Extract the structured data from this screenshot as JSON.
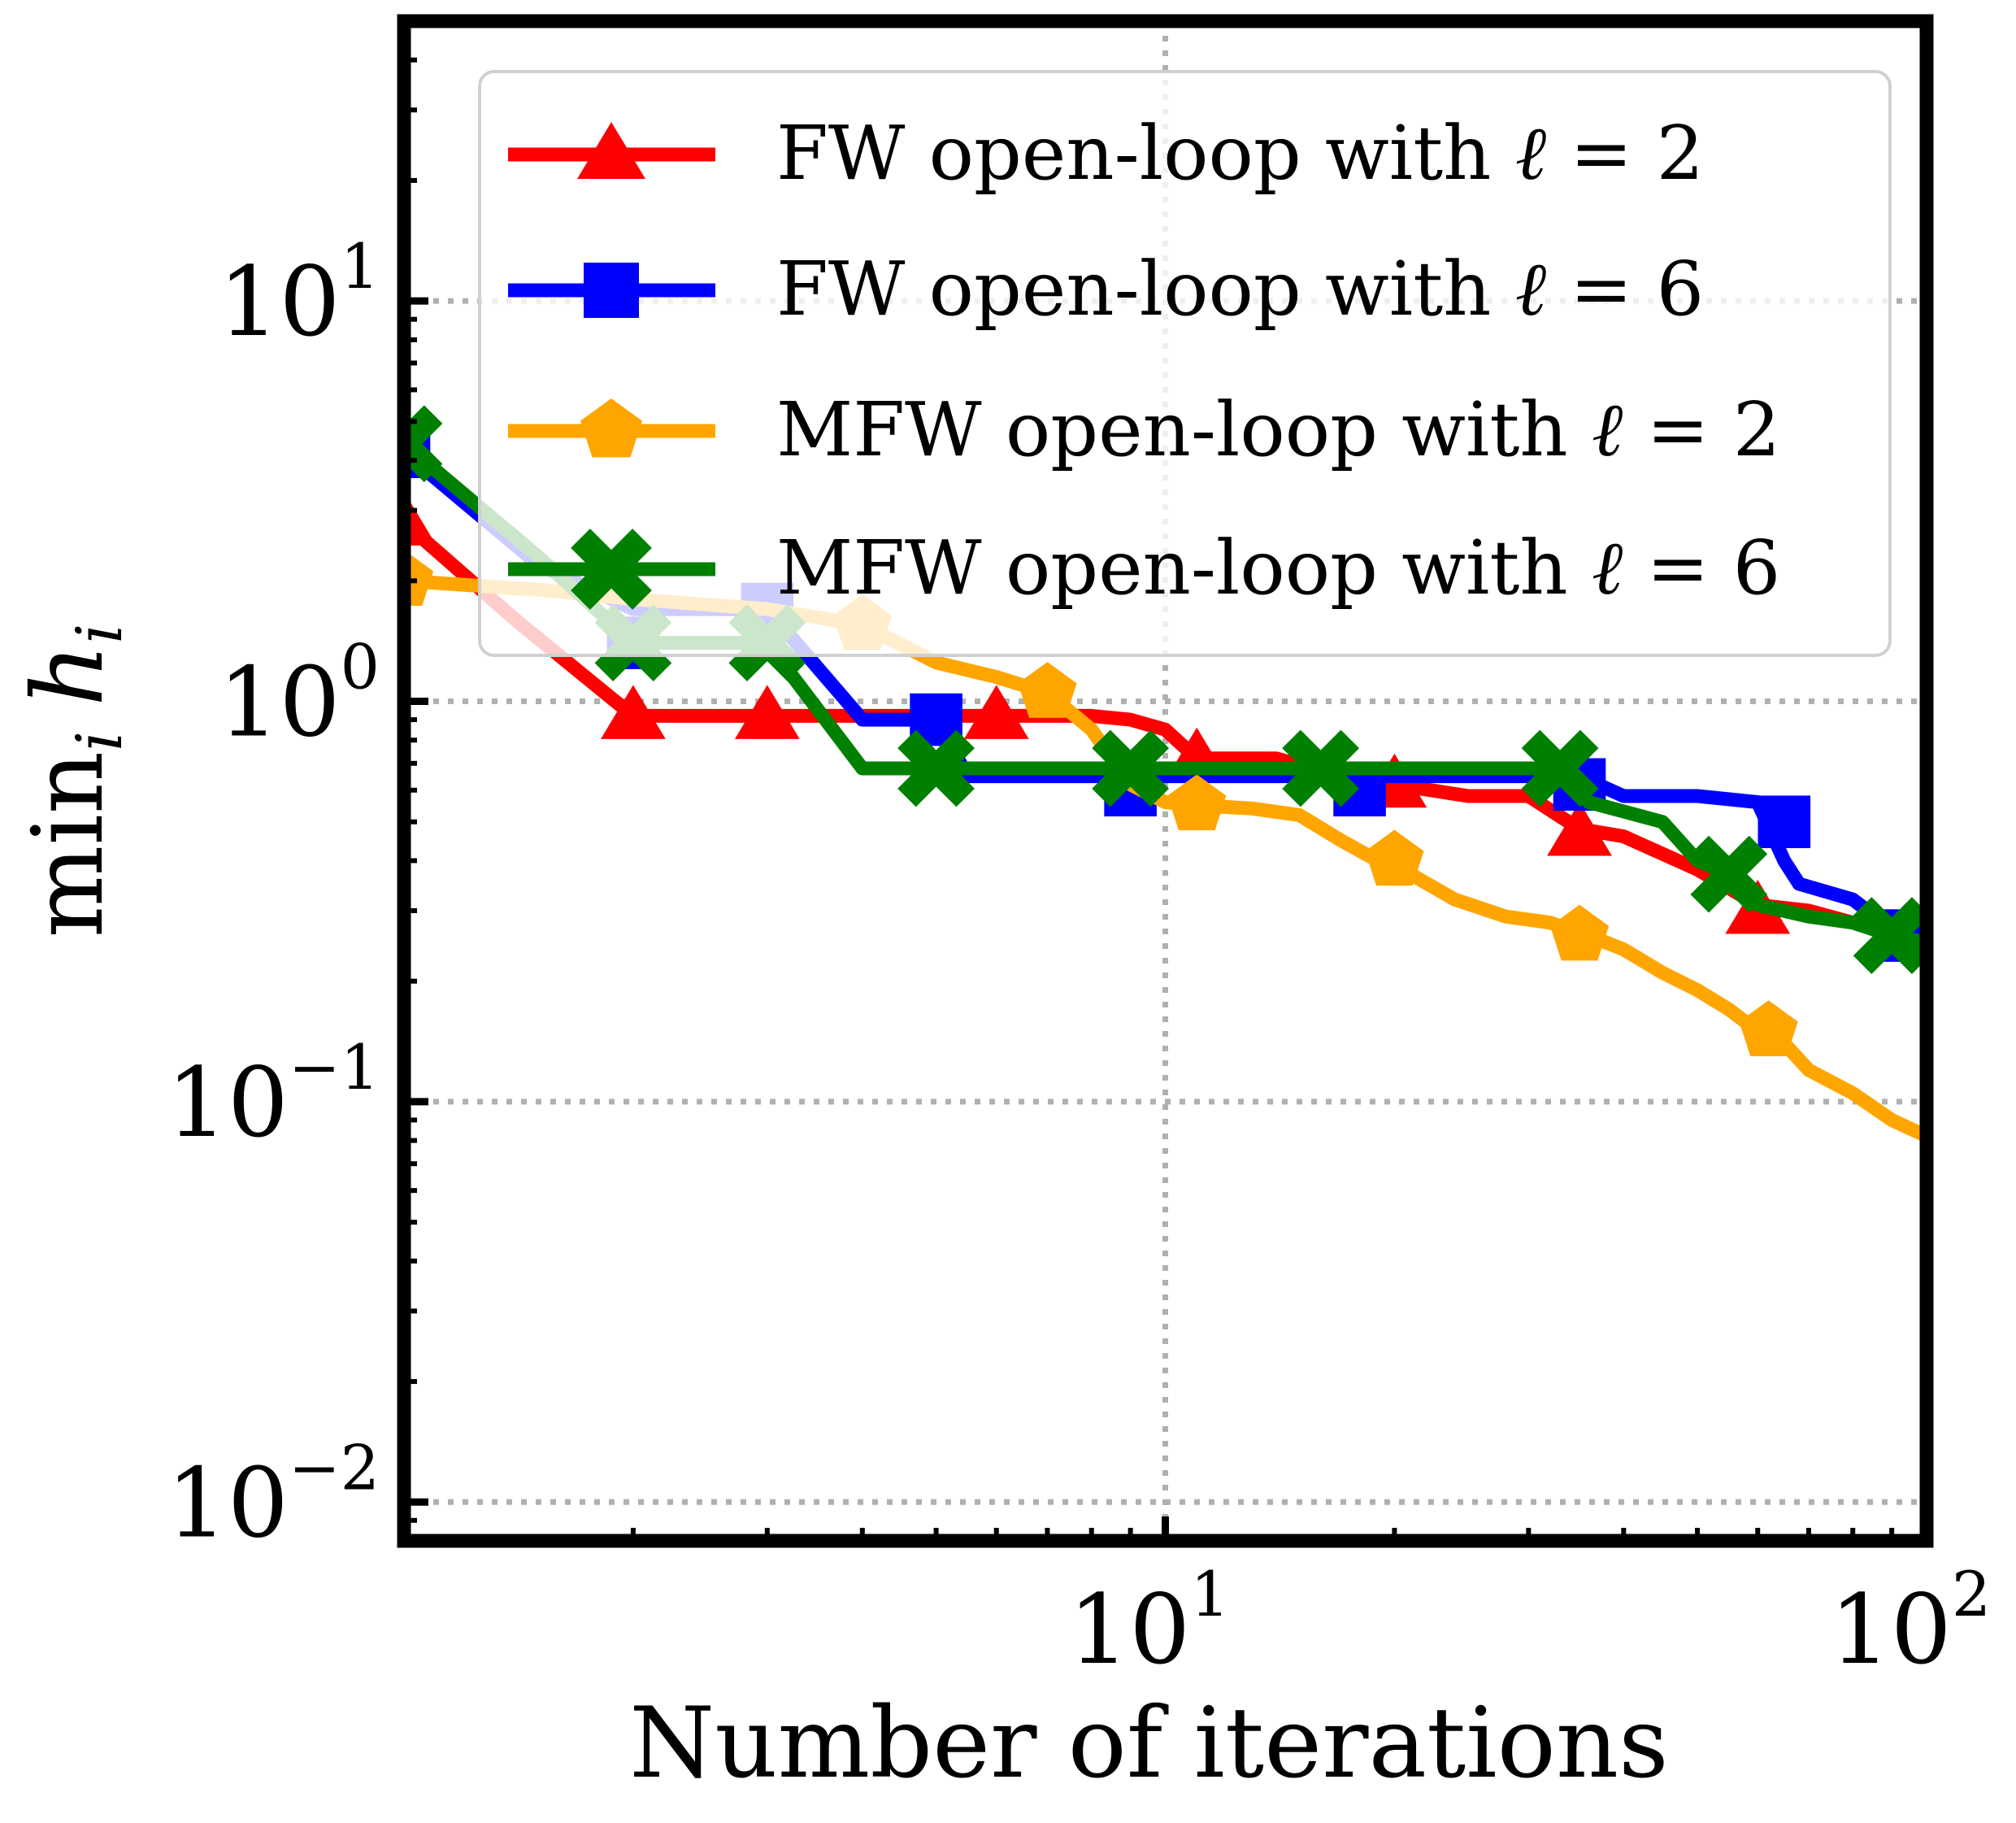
{
  "chart_data": {
    "type": "line",
    "xscale": "log",
    "yscale": "log",
    "xlim": [
      1,
      100
    ],
    "ylim": [
      0.008,
      50
    ],
    "xlabel": "Number of iterations",
    "ylabel": "min_i h_i",
    "ylabel_parts": {
      "op": "min",
      "sub": "i",
      "var": "h",
      "var_sub": "i"
    },
    "grid": true,
    "legend_position": "top-right",
    "xticks": [
      {
        "value": 10,
        "base": "10",
        "exp": "1"
      },
      {
        "value": 100,
        "base": "10",
        "exp": "2"
      }
    ],
    "yticks": [
      {
        "value": 10,
        "base": "10",
        "exp": "1"
      },
      {
        "value": 1,
        "base": "10",
        "exp": "0"
      },
      {
        "value": 0.1,
        "base": "10",
        "exp": "−1"
      },
      {
        "value": 0.01,
        "base": "10",
        "exp": "−2"
      }
    ],
    "series": [
      {
        "name": "FW open-loop with ℓ = 2",
        "name_parts": {
          "prefix": "FW open-loop with ",
          "ell": "ℓ",
          "eq": " = 2"
        },
        "color": "#ff0000",
        "marker": "triangle",
        "x": [
          1,
          1.4,
          2,
          2.2,
          3,
          3.5,
          4,
          5,
          6,
          7,
          8,
          9,
          10,
          11,
          12,
          14,
          16,
          18,
          20,
          25,
          30,
          35,
          40,
          50,
          60,
          70,
          80,
          90,
          100
        ],
        "y": [
          2.8,
          1.6,
          0.92,
          0.92,
          0.92,
          0.92,
          0.92,
          0.92,
          0.92,
          0.92,
          0.92,
          0.9,
          0.85,
          0.72,
          0.72,
          0.72,
          0.67,
          0.62,
          0.62,
          0.58,
          0.58,
          0.48,
          0.46,
          0.38,
          0.31,
          0.3,
          0.28,
          0.27,
          0.26
        ],
        "marker_x": [
          1,
          2,
          3,
          6,
          11,
          20,
          35,
          60
        ],
        "marker_y": [
          2.8,
          0.92,
          0.92,
          0.92,
          0.72,
          0.62,
          0.47,
          0.3
        ]
      },
      {
        "name": "FW open-loop with ℓ = 6",
        "name_parts": {
          "prefix": "FW open-loop with ",
          "ell": "ℓ",
          "eq": " = 6"
        },
        "color": "#0000ff",
        "marker": "square",
        "x": [
          1,
          1.5,
          2,
          3,
          4,
          4.5,
          5,
          5.5,
          6,
          7,
          9,
          12,
          18,
          20,
          25,
          35,
          40,
          50,
          60,
          65,
          68,
          80,
          90,
          100
        ],
        "y": [
          4.2,
          2.2,
          1.7,
          1.7,
          0.9,
          0.9,
          0.9,
          0.65,
          0.65,
          0.65,
          0.65,
          0.65,
          0.65,
          0.65,
          0.65,
          0.65,
          0.58,
          0.58,
          0.56,
          0.4,
          0.35,
          0.32,
          0.27,
          0.25
        ],
        "marker_x": [
          1,
          2,
          3,
          5,
          9,
          18,
          35,
          65,
          95
        ],
        "marker_y": [
          4.2,
          1.4,
          1.7,
          0.9,
          0.6,
          0.6,
          0.62,
          0.5,
          0.26
        ]
      },
      {
        "name": "MFW open-loop with ℓ = 2",
        "name_parts": {
          "prefix": "MFW open-loop with ",
          "ell": "ℓ",
          "eq": " = 2"
        },
        "color": "#ffa500",
        "marker": "pentagon",
        "x": [
          1,
          1.5,
          2,
          3,
          4,
          5,
          6,
          7,
          8,
          9,
          10,
          11,
          13,
          15,
          17,
          19,
          21,
          24,
          28,
          32,
          36,
          40,
          45,
          50,
          55,
          60,
          65,
          70,
          80,
          90,
          100
        ],
        "y": [
          2.0,
          1.9,
          1.8,
          1.7,
          1.55,
          1.25,
          1.15,
          1.05,
          0.85,
          0.62,
          0.56,
          0.55,
          0.54,
          0.52,
          0.45,
          0.4,
          0.37,
          0.32,
          0.29,
          0.28,
          0.26,
          0.24,
          0.21,
          0.19,
          0.17,
          0.15,
          0.14,
          0.12,
          0.105,
          0.09,
          0.082
        ],
        "marker_x": [
          1,
          4,
          7,
          11,
          20,
          35,
          62
        ],
        "marker_y": [
          2.0,
          1.55,
          1.05,
          0.55,
          0.4,
          0.26,
          0.15
        ]
      },
      {
        "name": "MFW open-loop with ℓ = 6",
        "name_parts": {
          "prefix": "MFW open-loop with ",
          "ell": "ℓ",
          "eq": " = 6"
        },
        "color": "#008000",
        "marker": "x",
        "x": [
          1,
          1.5,
          2,
          3,
          4,
          5,
          9,
          16,
          20,
          33,
          36,
          45,
          50,
          55,
          60,
          70,
          80,
          90,
          100
        ],
        "y": [
          4.4,
          2.3,
          1.4,
          1.4,
          0.68,
          0.68,
          0.68,
          0.68,
          0.68,
          0.68,
          0.56,
          0.5,
          0.4,
          0.37,
          0.31,
          0.29,
          0.28,
          0.26,
          0.25
        ],
        "marker_x": [
          1,
          2,
          3,
          5,
          9,
          16,
          33,
          55,
          90
        ],
        "marker_y": [
          4.4,
          1.4,
          1.4,
          0.68,
          0.68,
          0.68,
          0.68,
          0.37,
          0.26
        ]
      }
    ]
  }
}
